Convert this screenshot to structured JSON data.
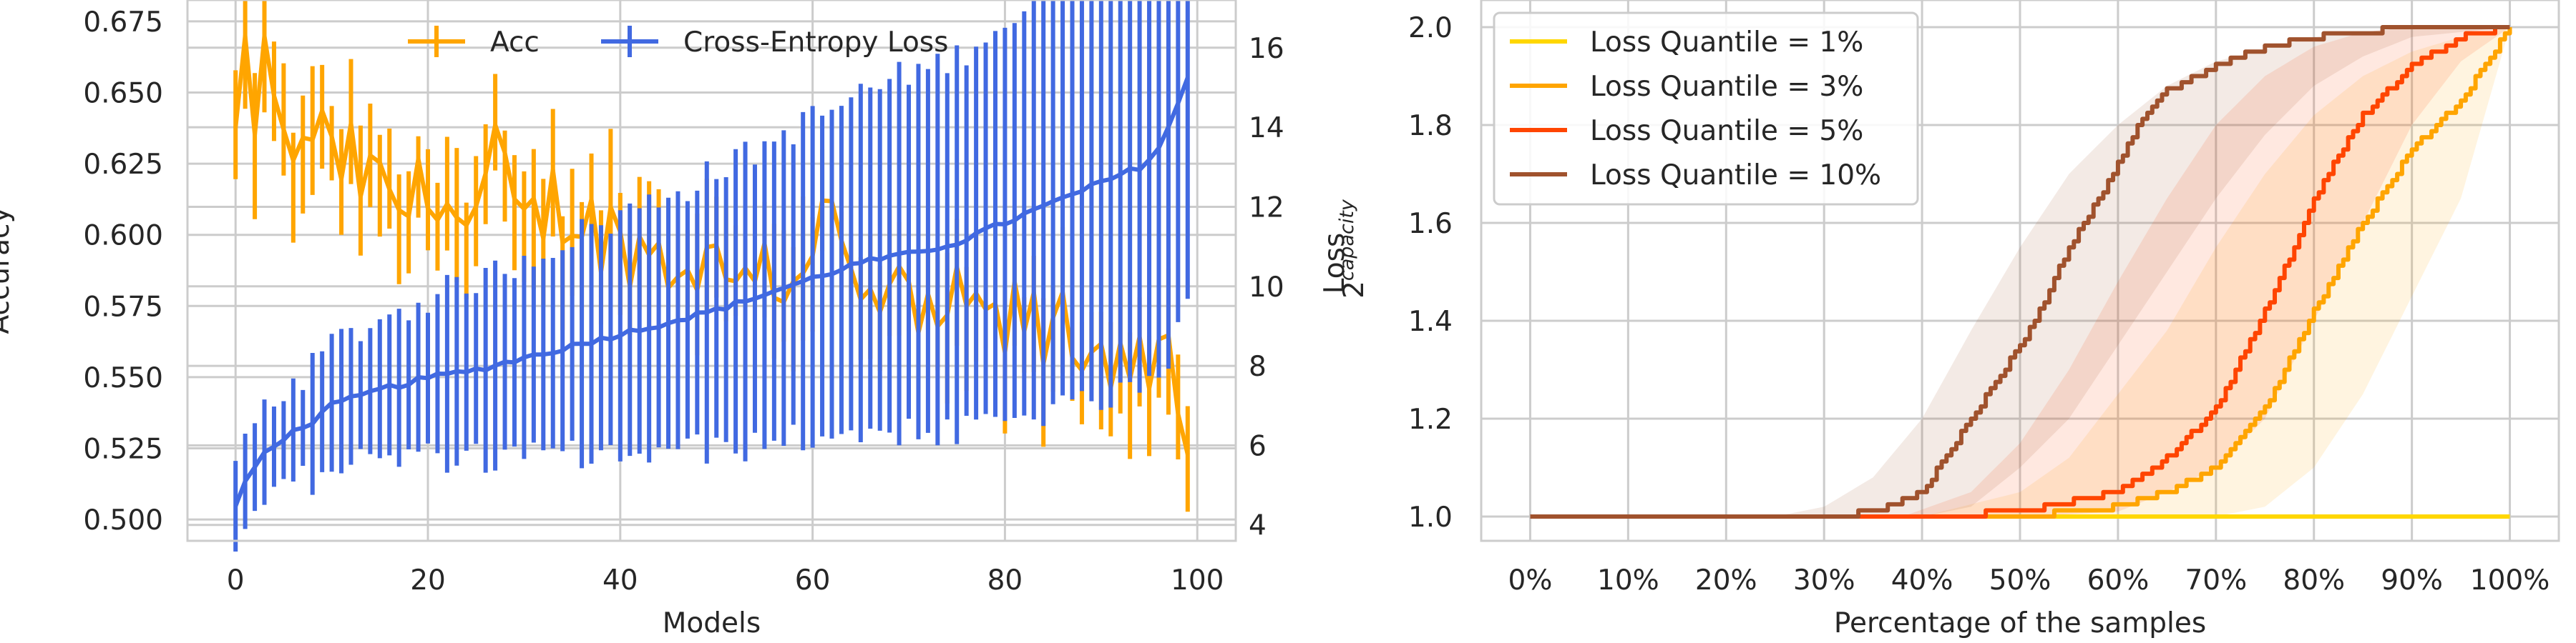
{
  "chart_data": [
    {
      "type": "line",
      "xlabel": "Models",
      "ylabel": "Accuracy",
      "y2label": "Loss",
      "xlim": [
        -5,
        104
      ],
      "xticks": [
        "0",
        "20",
        "40",
        "60",
        "80",
        "100"
      ],
      "ylim": [
        0.4925,
        0.6825
      ],
      "yticks": [
        "0.500",
        "0.525",
        "0.550",
        "0.575",
        "0.600",
        "0.625",
        "0.650",
        "0.675"
      ],
      "y2lim": [
        3.6,
        17.2
      ],
      "y2ticks": [
        "4",
        "6",
        "8",
        "10",
        "12",
        "14",
        "16"
      ],
      "legend_position": "top-center",
      "grid": true,
      "series": [
        {
          "name": "Acc",
          "axis": "left",
          "color": "#FFA500",
          "x_start": 0,
          "x_end": 99,
          "anchor_x": [
            0,
            1,
            2,
            3,
            4,
            5,
            6,
            7,
            8,
            10,
            12,
            15,
            18,
            21,
            24,
            27,
            30,
            33,
            36,
            39,
            42,
            45,
            48,
            51,
            54,
            57,
            60,
            62,
            64,
            66,
            68,
            70,
            72,
            74,
            76,
            78,
            80,
            82,
            84,
            86,
            88,
            90,
            92,
            94,
            96,
            98,
            99
          ],
          "anchor_y": [
            0.633,
            0.655,
            0.645,
            0.66,
            0.64,
            0.645,
            0.615,
            0.635,
            0.64,
            0.625,
            0.625,
            0.615,
            0.61,
            0.62,
            0.6,
            0.625,
            0.6,
            0.612,
            0.605,
            0.6,
            0.595,
            0.59,
            0.592,
            0.585,
            0.595,
            0.582,
            0.6,
            0.605,
            0.58,
            0.575,
            0.58,
            0.572,
            0.565,
            0.578,
            0.57,
            0.572,
            0.565,
            0.575,
            0.56,
            0.57,
            0.56,
            0.558,
            0.562,
            0.56,
            0.555,
            0.545,
            0.51
          ],
          "err_lo": 0.012,
          "err_hi": 0.025
        },
        {
          "name": "Cross-Entropy Loss",
          "axis": "right",
          "color": "#4169E1",
          "x_start": 0,
          "x_end": 99,
          "anchor_x": [
            0,
            1,
            3,
            5,
            8,
            10,
            15,
            20,
            25,
            30,
            35,
            40,
            45,
            50,
            55,
            60,
            65,
            70,
            75,
            80,
            85,
            88,
            90,
            92,
            94,
            95,
            96,
            97,
            98,
            99
          ],
          "anchor_y": [
            4.4,
            5.1,
            5.8,
            6.2,
            6.6,
            7.0,
            7.4,
            7.7,
            7.9,
            8.2,
            8.5,
            8.8,
            9.1,
            9.4,
            9.8,
            10.2,
            10.6,
            10.8,
            11.1,
            11.6,
            12.1,
            12.4,
            12.6,
            12.8,
            13.0,
            13.2,
            13.5,
            14.0,
            14.6,
            15.2
          ],
          "err_half_base": 1.0,
          "err_half_gain": 0.05
        }
      ]
    },
    {
      "type": "line",
      "xlabel": "Percentage of the samples",
      "ylabel": "2^capacity",
      "ylabel_base": "2",
      "ylabel_sup": "capacity",
      "xlim": [
        -5,
        105
      ],
      "xticks": [
        "0%",
        "10%",
        "20%",
        "30%",
        "40%",
        "50%",
        "60%",
        "70%",
        "80%",
        "90%",
        "100%"
      ],
      "ylim": [
        0.95,
        2.0
      ],
      "yticks": [
        "1.0",
        "1.2",
        "1.4",
        "1.6",
        "1.8",
        "2.0"
      ],
      "legend_position": "upper-left",
      "grid": true,
      "series": [
        {
          "name": "Loss Quantile = 1%",
          "color": "#FFD700",
          "curve_x": [
            0,
            100
          ],
          "curve_y": [
            1.0,
            1.0
          ]
        },
        {
          "name": "Loss Quantile = 3%",
          "color": "#FFA500",
          "curve_x": [
            0,
            40,
            50,
            60,
            65,
            70,
            72,
            75,
            80,
            85,
            90,
            95,
            100
          ],
          "curve_y": [
            1.0,
            1.0,
            1.0,
            1.02,
            1.05,
            1.1,
            1.15,
            1.22,
            1.42,
            1.6,
            1.75,
            1.85,
            2.0
          ],
          "band_lower_x": [
            0,
            50,
            60,
            70,
            75,
            80,
            85,
            90,
            95,
            100
          ],
          "band_lower_y": [
            1.0,
            1.0,
            1.0,
            1.0,
            1.02,
            1.1,
            1.25,
            1.45,
            1.65,
            2.0
          ],
          "band_upper_x": [
            0,
            40,
            50,
            55,
            60,
            65,
            70,
            75,
            80,
            85,
            90,
            95,
            100
          ],
          "band_upper_y": [
            1.0,
            1.0,
            1.05,
            1.12,
            1.25,
            1.38,
            1.55,
            1.7,
            1.82,
            1.9,
            1.95,
            1.98,
            2.0
          ]
        },
        {
          "name": "Loss Quantile = 5%",
          "color": "#FF4500",
          "curve_x": [
            0,
            40,
            50,
            60,
            65,
            70,
            75,
            78,
            80,
            82,
            85,
            88,
            90,
            95,
            100
          ],
          "curve_y": [
            1.0,
            1.0,
            1.01,
            1.05,
            1.12,
            1.22,
            1.42,
            1.55,
            1.65,
            1.72,
            1.82,
            1.88,
            1.92,
            1.98,
            2.0
          ],
          "band_lower_x": [
            0,
            50,
            60,
            65,
            70,
            75,
            80,
            85,
            90,
            95,
            100
          ],
          "band_lower_y": [
            1.0,
            1.0,
            1.01,
            1.05,
            1.1,
            1.2,
            1.4,
            1.6,
            1.8,
            1.93,
            2.0
          ],
          "band_upper_x": [
            0,
            38,
            45,
            50,
            55,
            60,
            65,
            70,
            75,
            80,
            85,
            90,
            95,
            100
          ],
          "band_upper_y": [
            1.0,
            1.0,
            1.05,
            1.15,
            1.3,
            1.48,
            1.65,
            1.8,
            1.9,
            1.96,
            1.99,
            2.0,
            2.0,
            2.0
          ]
        },
        {
          "name": "Loss Quantile = 10%",
          "color": "#A0522D",
          "curve_x": [
            0,
            30,
            35,
            40,
            45,
            50,
            52,
            55,
            58,
            60,
            62,
            65,
            70,
            75,
            80,
            85,
            90,
            95,
            100
          ],
          "curve_y": [
            1.0,
            1.0,
            1.01,
            1.05,
            1.2,
            1.35,
            1.42,
            1.55,
            1.65,
            1.72,
            1.8,
            1.87,
            1.92,
            1.96,
            1.98,
            1.99,
            2.0,
            2.0,
            2.0
          ],
          "band_lower_x": [
            0,
            40,
            45,
            50,
            55,
            60,
            65,
            70,
            75,
            80,
            85,
            90,
            100
          ],
          "band_lower_y": [
            1.0,
            1.0,
            1.02,
            1.1,
            1.2,
            1.35,
            1.5,
            1.65,
            1.78,
            1.88,
            1.94,
            1.98,
            2.0
          ],
          "band_upper_x": [
            0,
            25,
            30,
            35,
            40,
            45,
            50,
            55,
            60,
            65,
            70,
            80,
            90,
            100
          ],
          "band_upper_y": [
            1.0,
            1.0,
            1.02,
            1.08,
            1.2,
            1.38,
            1.55,
            1.7,
            1.8,
            1.88,
            1.93,
            1.98,
            2.0,
            2.0
          ]
        }
      ]
    }
  ]
}
